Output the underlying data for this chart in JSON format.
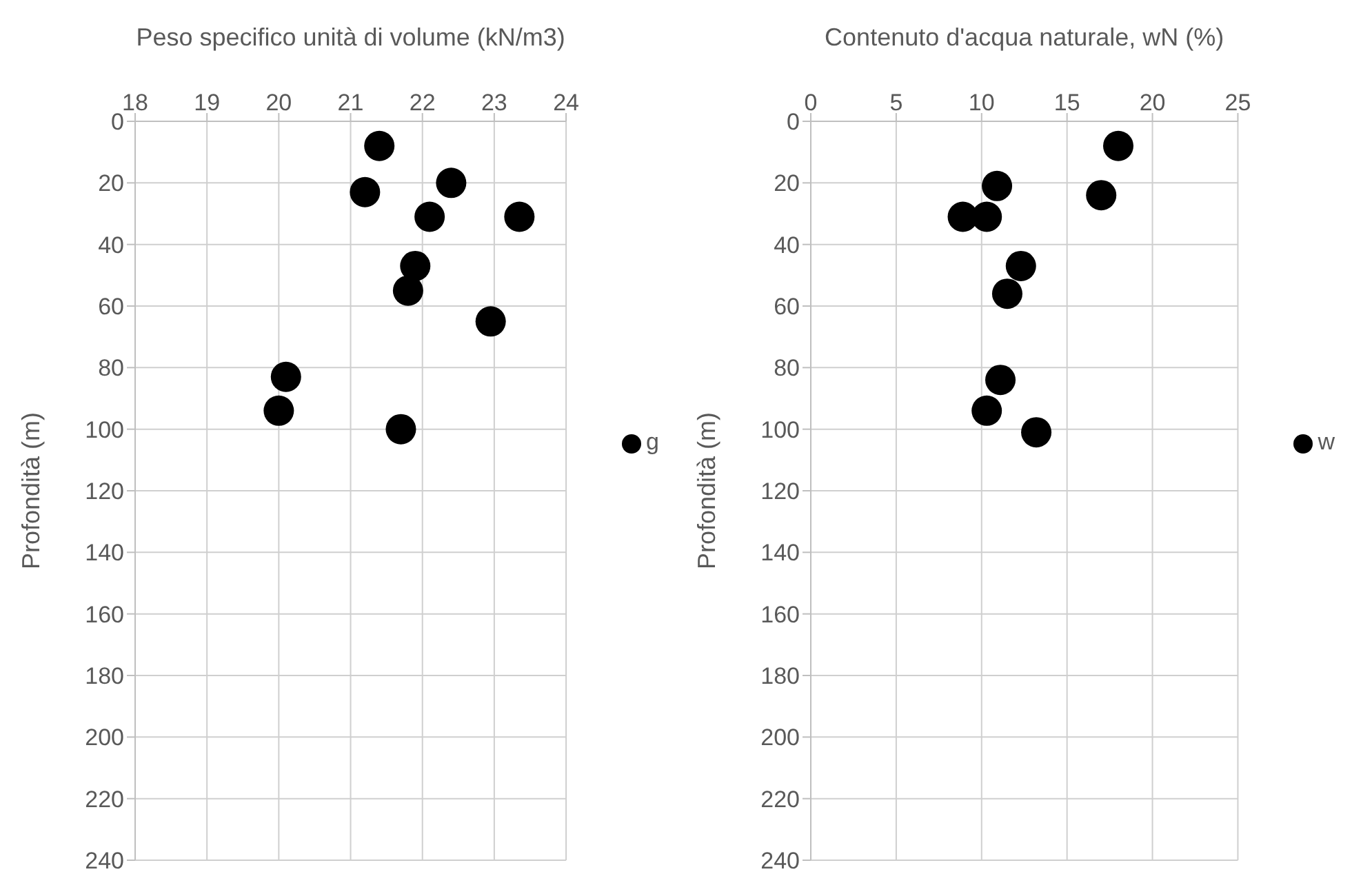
{
  "chart_data": [
    {
      "type": "scatter",
      "xlabel": "Peso specifico unità di volume (kN/m3)",
      "ylabel": "Profondità (m)",
      "xlim": [
        18,
        24
      ],
      "xticks": [
        18,
        19,
        20,
        21,
        22,
        23,
        24
      ],
      "ylim": [
        240,
        0
      ],
      "yticks": [
        0,
        20,
        40,
        60,
        80,
        100,
        120,
        140,
        160,
        180,
        200,
        220,
        240
      ],
      "grid": true,
      "legend": "right",
      "marker": "circle",
      "series": [
        {
          "name": "g",
          "color": "#000000",
          "x": [
            21.4,
            21.2,
            22.4,
            22.1,
            23.35,
            21.9,
            21.8,
            22.95,
            20.1,
            20.0,
            21.7
          ],
          "values": [
            8,
            23,
            20,
            31,
            31,
            47,
            55,
            65,
            83,
            94,
            100
          ]
        }
      ]
    },
    {
      "type": "scatter",
      "xlabel": "Contenuto d'acqua naturale, wN (%)",
      "ylabel": "Profondità (m)",
      "xlim": [
        0,
        25
      ],
      "xticks": [
        0,
        5,
        10,
        15,
        20,
        25
      ],
      "ylim": [
        240,
        0
      ],
      "yticks": [
        0,
        20,
        40,
        60,
        80,
        100,
        120,
        140,
        160,
        180,
        200,
        220,
        240
      ],
      "grid": true,
      "legend": "right",
      "marker": "circle",
      "series": [
        {
          "name": "w",
          "color": "#000000",
          "x": [
            18.0,
            17.0,
            10.9,
            8.9,
            10.3,
            12.3,
            11.5,
            11.1,
            10.3,
            13.2
          ],
          "values": [
            8,
            24,
            21,
            31,
            31,
            47,
            56,
            84,
            94,
            101
          ]
        }
      ]
    }
  ]
}
